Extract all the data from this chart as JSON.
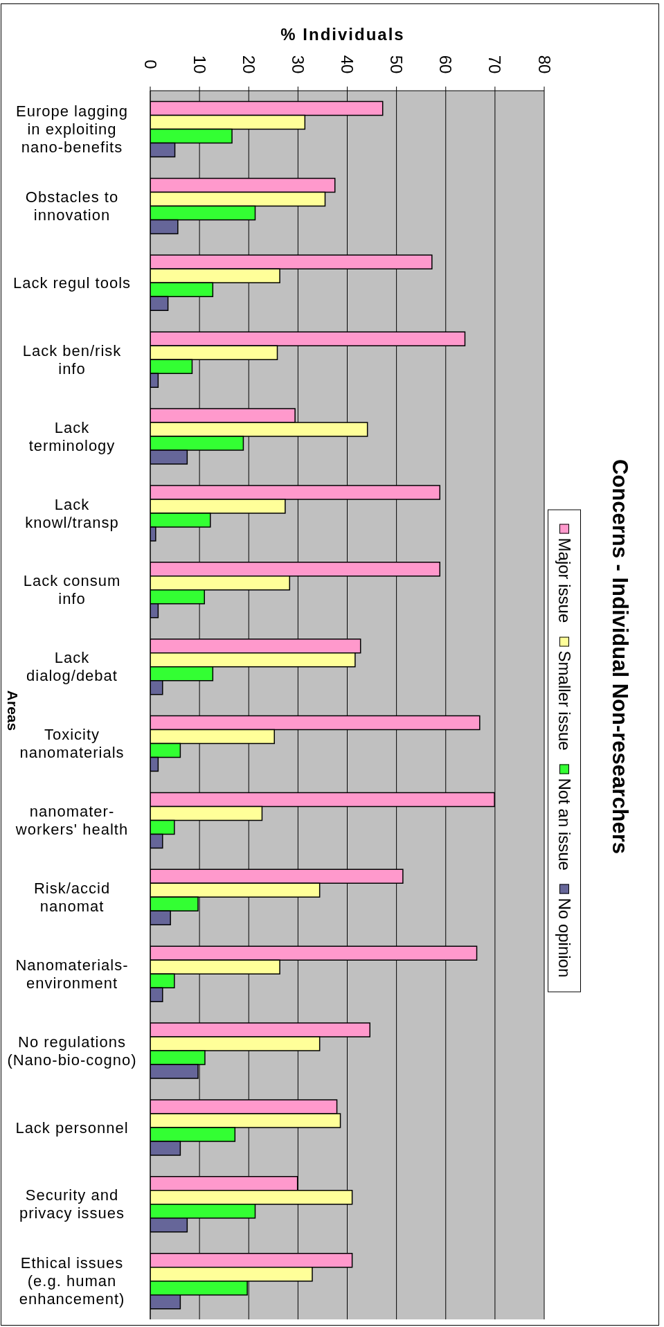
{
  "chart_data": {
    "type": "bar",
    "orientation": "horizontal",
    "title": "Concerns - Individual Non-researchers",
    "xlabel": "% Individuals",
    "ylabel": "Areas",
    "categories": [
      "Europe lagging\nin exploiting\nnano-benefits",
      "Obstacles to\ninnovation",
      "Lack regul tools",
      "Lack ben/risk\ninfo",
      "Lack\nterminology",
      "Lack\nknowl/transp",
      "Lack consum\ninfo",
      "Lack\ndialog/debat",
      "Toxicity\nnanomaterials",
      "nanomater-\nworkers' health",
      "Risk/accid\nnanomat",
      "Nanomaterials-\nenvironment",
      "No regulations\n(Nano-bio-cogno)",
      "Lack personnel",
      "Security and\nprivacy issues",
      "Ethical issues\n(e.g. human\nenhancement)"
    ],
    "series": [
      {
        "name": "Major issue",
        "color": "#ff99cc",
        "values": [
          47.2,
          37.5,
          57.2,
          63.9,
          29.4,
          58.8,
          58.8,
          42.7,
          66.9,
          69.9,
          51.3,
          66.3,
          44.6,
          37.9,
          29.9,
          41.0
        ]
      },
      {
        "name": "Smaller issue",
        "color": "#ffff99",
        "values": [
          31.4,
          35.5,
          26.3,
          25.8,
          44.1,
          27.4,
          28.3,
          41.6,
          25.2,
          22.7,
          34.4,
          26.3,
          34.4,
          38.6,
          41.0,
          32.9
        ]
      },
      {
        "name": "Not an issue",
        "color": "#33ff33",
        "values": [
          16.6,
          21.3,
          12.7,
          8.5,
          18.9,
          12.2,
          11.0,
          12.7,
          6.1,
          4.9,
          9.7,
          4.9,
          11.1,
          17.2,
          21.3,
          19.7
        ]
      },
      {
        "name": "No opinion",
        "color": "#666699",
        "values": [
          5.0,
          5.6,
          3.6,
          1.6,
          7.5,
          1.1,
          1.6,
          2.5,
          1.6,
          2.5,
          4.1,
          2.5,
          9.7,
          6.1,
          7.5,
          6.1
        ]
      }
    ],
    "xlim": [
      0,
      80
    ],
    "xticks": [
      0,
      10,
      20,
      30,
      40,
      50,
      60,
      70,
      80
    ],
    "grid": "x",
    "legend": "right"
  }
}
